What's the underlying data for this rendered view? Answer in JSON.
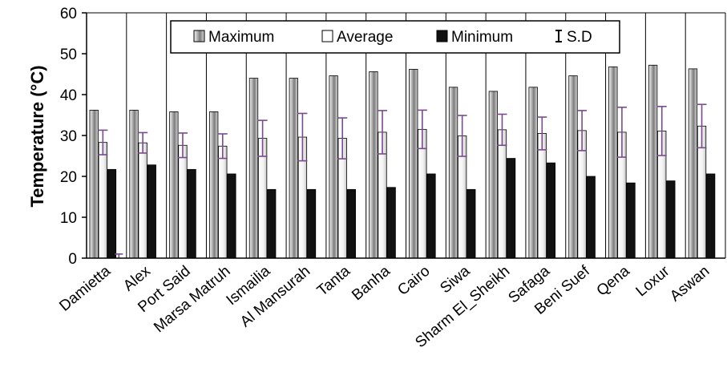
{
  "chart_data": {
    "type": "bar",
    "ylabel": "Temperature (°C)",
    "ylim": [
      0,
      60
    ],
    "yticks": [
      0,
      10,
      20,
      30,
      40,
      50,
      60
    ],
    "grid": "vertical category separators",
    "legend_position": "top",
    "categories": [
      "Damietta",
      "Alex",
      "Port Said",
      "Marsa Matruh",
      "Ismailia",
      "Al Mansurah",
      "Tanta",
      "Banha",
      "Cairo",
      "Siwa",
      "Sharm El_Sheikh",
      "Safaga",
      "Beni Suef",
      "Qena",
      "Loxur",
      "Aswan"
    ],
    "series": [
      {
        "name": "Maximum",
        "values": [
          36.2,
          36.2,
          35.8,
          35.8,
          44.0,
          44.0,
          44.6,
          45.6,
          46.2,
          41.8,
          40.8,
          41.8,
          44.6,
          46.8,
          47.2,
          46.3
        ]
      },
      {
        "name": "Average",
        "values": [
          28.3,
          28.2,
          27.6,
          27.4,
          29.3,
          29.6,
          29.3,
          30.8,
          31.5,
          29.9,
          31.4,
          30.5,
          31.2,
          30.8,
          31.1,
          32.3
        ]
      },
      {
        "name": "Minimum",
        "values": [
          21.7,
          22.8,
          21.7,
          20.6,
          16.8,
          16.8,
          16.8,
          17.3,
          20.6,
          16.8,
          24.4,
          23.3,
          20.0,
          18.4,
          18.9,
          20.6
        ]
      }
    ],
    "error_bars": {
      "name": "S.D",
      "series": "Average",
      "values": [
        3.0,
        2.5,
        3.0,
        3.0,
        4.4,
        5.8,
        5.0,
        5.3,
        4.7,
        5.0,
        3.8,
        4.0,
        4.9,
        6.1,
        6.0,
        5.3
      ]
    },
    "extra_error_bar": {
      "category": "Damietta",
      "value": 0,
      "sd": 1.0
    }
  },
  "colors": {
    "minimum": "#111111",
    "axis": "#000000",
    "error_bar": "#7a4a8f",
    "gridline": "#000000"
  }
}
